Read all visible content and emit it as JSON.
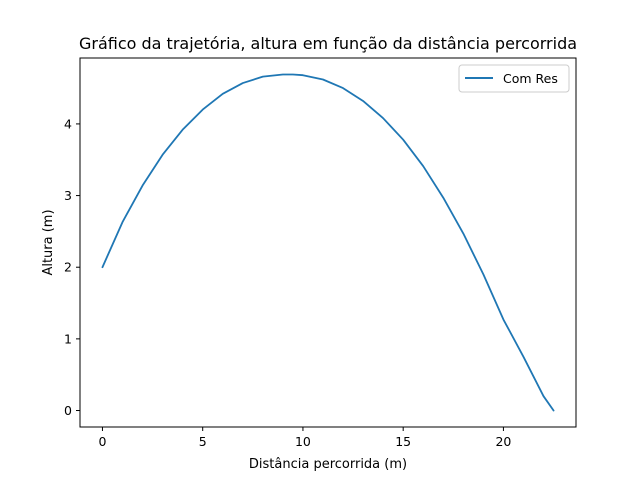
{
  "chart_data": {
    "type": "line",
    "title": "Gráfico da trajetória, altura em função da distância percorrida",
    "xlabel": "Distância percorrida (m)",
    "ylabel": "Altura (m)",
    "xlim": [
      -1.12,
      23.62
    ],
    "ylim": [
      -0.23,
      4.92
    ],
    "x_ticks": [
      0,
      5,
      10,
      15,
      20
    ],
    "y_ticks": [
      0,
      1,
      2,
      3,
      4
    ],
    "grid": false,
    "legend_position": "top-right",
    "series": [
      {
        "name": "Com Res",
        "color": "#1f77b4",
        "x": [
          0,
          1,
          2,
          3,
          4,
          5,
          6,
          7,
          8,
          9,
          9.5,
          10,
          11,
          12,
          13,
          14,
          15,
          16,
          17,
          18,
          19,
          20,
          21,
          22,
          22.5
        ],
        "y": [
          2.0,
          2.63,
          3.14,
          3.57,
          3.92,
          4.2,
          4.42,
          4.57,
          4.66,
          4.69,
          4.69,
          4.68,
          4.62,
          4.5,
          4.32,
          4.08,
          3.78,
          3.41,
          2.97,
          2.47,
          1.9,
          1.27,
          0.75,
          0.2,
          0.0
        ]
      }
    ]
  }
}
